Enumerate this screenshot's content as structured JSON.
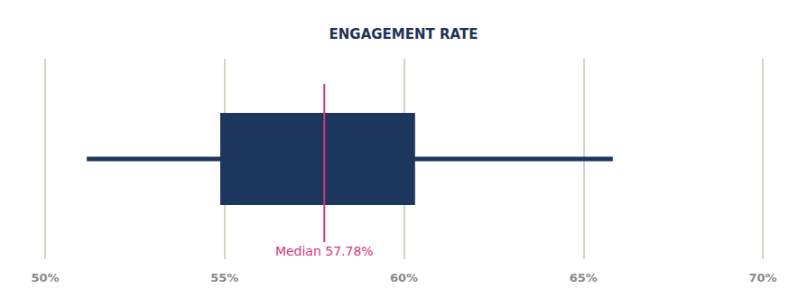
{
  "chart_data": {
    "type": "boxplot",
    "title": "ENGAGEMENT RATE",
    "orientation": "horizontal",
    "box": {
      "min": 51.16,
      "q1": 54.88,
      "median": 57.78,
      "q3": 60.31,
      "max": 65.82
    },
    "color": "#1c365d",
    "xlim": [
      50,
      70
    ],
    "xticks": [
      {
        "value": 50,
        "label": "50%"
      },
      {
        "value": 55,
        "label": "55%"
      },
      {
        "value": 60,
        "label": "60%"
      },
      {
        "value": 65,
        "label": "65%"
      },
      {
        "value": 70,
        "label": "70%"
      }
    ],
    "grid": true,
    "annotations": [
      {
        "text": "Median 57.78%",
        "x": 57.78
      }
    ]
  }
}
